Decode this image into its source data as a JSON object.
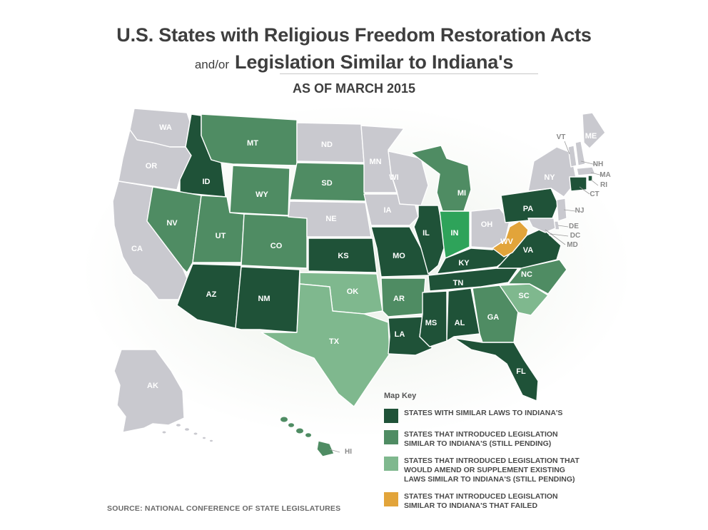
{
  "title": {
    "line1": "U.S. States with Religious Freedom Restoration Acts",
    "line2_prefix": "and/or",
    "line2_main": "Legislation Similar to Indiana's",
    "subtitle": "AS OF MARCH 2015"
  },
  "colors": {
    "similar_laws": "#1f5238",
    "introduced_pending": "#4f8c63",
    "amend_existing": "#7fb88e",
    "failed": "#e2a43a",
    "indiana": "#2ea35a",
    "no_legislation": "#c9c9cf"
  },
  "states": [
    {
      "abbr": "WA",
      "category": "none"
    },
    {
      "abbr": "OR",
      "category": "none"
    },
    {
      "abbr": "CA",
      "category": "none"
    },
    {
      "abbr": "ID",
      "category": "similar_laws"
    },
    {
      "abbr": "NV",
      "category": "introduced_pending"
    },
    {
      "abbr": "MT",
      "category": "introduced_pending"
    },
    {
      "abbr": "WY",
      "category": "introduced_pending"
    },
    {
      "abbr": "UT",
      "category": "introduced_pending"
    },
    {
      "abbr": "CO",
      "category": "introduced_pending"
    },
    {
      "abbr": "AZ",
      "category": "similar_laws"
    },
    {
      "abbr": "NM",
      "category": "similar_laws"
    },
    {
      "abbr": "ND",
      "category": "none"
    },
    {
      "abbr": "SD",
      "category": "introduced_pending"
    },
    {
      "abbr": "NE",
      "category": "none"
    },
    {
      "abbr": "KS",
      "category": "similar_laws"
    },
    {
      "abbr": "OK",
      "category": "amend_existing"
    },
    {
      "abbr": "TX",
      "category": "amend_existing"
    },
    {
      "abbr": "MN",
      "category": "none"
    },
    {
      "abbr": "IA",
      "category": "none"
    },
    {
      "abbr": "MO",
      "category": "similar_laws"
    },
    {
      "abbr": "AR",
      "category": "introduced_pending"
    },
    {
      "abbr": "LA",
      "category": "similar_laws"
    },
    {
      "abbr": "WI",
      "category": "none"
    },
    {
      "abbr": "IL",
      "category": "similar_laws"
    },
    {
      "abbr": "MI",
      "category": "introduced_pending"
    },
    {
      "abbr": "IN",
      "category": "indiana"
    },
    {
      "abbr": "OH",
      "category": "none"
    },
    {
      "abbr": "KY",
      "category": "similar_laws"
    },
    {
      "abbr": "TN",
      "category": "similar_laws"
    },
    {
      "abbr": "MS",
      "category": "similar_laws"
    },
    {
      "abbr": "AL",
      "category": "similar_laws"
    },
    {
      "abbr": "GA",
      "category": "introduced_pending"
    },
    {
      "abbr": "FL",
      "category": "similar_laws"
    },
    {
      "abbr": "SC",
      "category": "amend_existing"
    },
    {
      "abbr": "NC",
      "category": "introduced_pending"
    },
    {
      "abbr": "VA",
      "category": "similar_laws"
    },
    {
      "abbr": "WV",
      "category": "failed"
    },
    {
      "abbr": "PA",
      "category": "similar_laws"
    },
    {
      "abbr": "NY",
      "category": "none"
    },
    {
      "abbr": "VT",
      "category": "none"
    },
    {
      "abbr": "NH",
      "category": "none"
    },
    {
      "abbr": "ME",
      "category": "none"
    },
    {
      "abbr": "MA",
      "category": "none"
    },
    {
      "abbr": "RI",
      "category": "similar_laws"
    },
    {
      "abbr": "CT",
      "category": "similar_laws"
    },
    {
      "abbr": "NJ",
      "category": "none"
    },
    {
      "abbr": "DE",
      "category": "none"
    },
    {
      "abbr": "DC",
      "category": "none"
    },
    {
      "abbr": "MD",
      "category": "none"
    },
    {
      "abbr": "AK",
      "category": "none"
    },
    {
      "abbr": "HI",
      "category": "introduced_pending"
    }
  ],
  "legend": {
    "title": "Map Key",
    "items": [
      {
        "color": "#1f5238",
        "label": "STATES WITH SIMILAR LAWS TO INDIANA'S"
      },
      {
        "color": "#4f8c63",
        "label": "STATES THAT INTRODUCED LEGISLATION\nSIMILAR TO INDIANA'S (STILL PENDING)"
      },
      {
        "color": "#7fb88e",
        "label": "STATES THAT INTRODUCED LEGISLATION THAT\nWOULD AMEND OR SUPPLEMENT EXISTING\nLAWS SIMILAR TO INDIANA'S (STILL PENDING)"
      },
      {
        "color": "#e2a43a",
        "label": "STATES THAT INTRODUCED LEGISLATION\nSIMILAR TO INDIANA'S THAT FAILED"
      }
    ]
  },
  "source": "SOURCE: NATIONAL CONFERENCE OF STATE LEGISLATURES"
}
